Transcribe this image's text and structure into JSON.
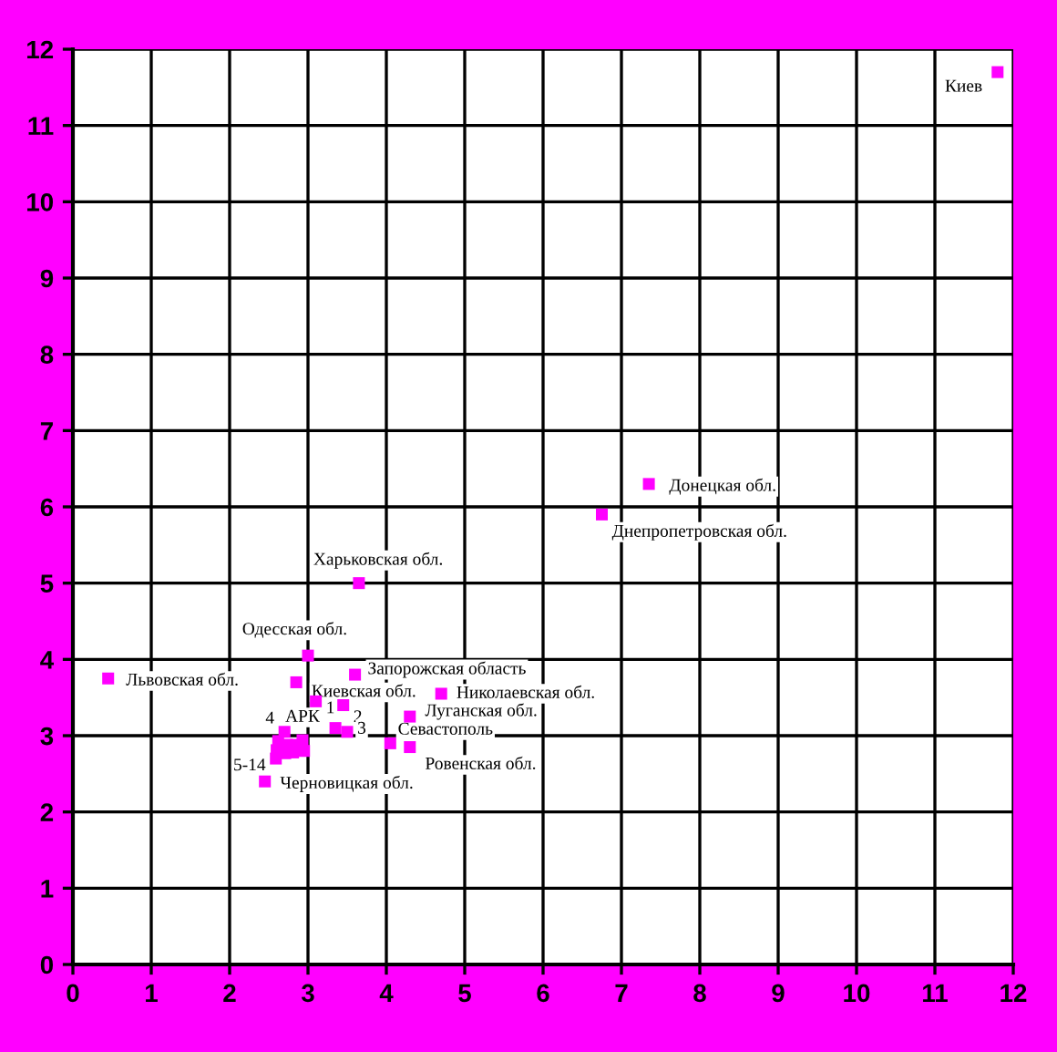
{
  "chart_data": {
    "type": "scatter",
    "marker": "square",
    "grid": true,
    "xlim": [
      0,
      12
    ],
    "ylim": [
      0,
      12
    ],
    "xticks": [
      0,
      1,
      2,
      3,
      4,
      5,
      6,
      7,
      8,
      9,
      10,
      11,
      12
    ],
    "yticks": [
      0,
      1,
      2,
      3,
      4,
      5,
      6,
      7,
      8,
      9,
      10,
      11,
      12
    ],
    "x": [
      11.8,
      7.35,
      6.75,
      3.65,
      3.0,
      0.45,
      2.85,
      3.6,
      4.7,
      3.1,
      3.45,
      4.3,
      3.35,
      3.5,
      2.7,
      2.93,
      4.05,
      4.3,
      2.45,
      2.62,
      2.73,
      2.85,
      2.6,
      2.81,
      2.95,
      2.59,
      2.71
    ],
    "series": [
      {
        "color": "#ff00ff",
        "values": [
          11.7,
          6.3,
          5.9,
          5.0,
          4.05,
          3.75,
          3.7,
          3.8,
          3.55,
          3.45,
          3.4,
          3.25,
          3.1,
          3.05,
          3.05,
          2.94,
          2.9,
          2.85,
          2.4,
          2.93,
          2.88,
          2.88,
          2.81,
          2.78,
          2.8,
          2.7,
          2.77
        ]
      }
    ],
    "annotations": [
      {
        "text": "Киев",
        "x": 11.8,
        "y": 11.7
      },
      {
        "text": "Донецкая обл.",
        "x": 7.35,
        "y": 6.3
      },
      {
        "text": "Днепропетровская обл.",
        "x": 6.75,
        "y": 5.9
      },
      {
        "text": "Харьковская обл.",
        "x": 3.65,
        "y": 5.0
      },
      {
        "text": "Одесская обл.",
        "x": 3.0,
        "y": 4.05
      },
      {
        "text": "Львовская обл.",
        "x": 0.45,
        "y": 3.75
      },
      {
        "text": "Киевская обл.",
        "x": 2.85,
        "y": 3.7
      },
      {
        "text": "Запорожская область",
        "x": 3.6,
        "y": 3.8
      },
      {
        "text": "Николаевская обл.",
        "x": 4.7,
        "y": 3.55
      },
      {
        "text": "1",
        "x": 3.1,
        "y": 3.45
      },
      {
        "text": "2",
        "x": 3.45,
        "y": 3.4
      },
      {
        "text": "Луганская обл.",
        "x": 4.3,
        "y": 3.25
      },
      {
        "text": "3",
        "x": 3.5,
        "y": 3.05
      },
      {
        "text": "4",
        "x": 2.7,
        "y": 3.05
      },
      {
        "text": "АРК",
        "x": 2.93,
        "y": 2.94
      },
      {
        "text": "Севастополь",
        "x": 4.05,
        "y": 2.9
      },
      {
        "text": "Ровенская обл.",
        "x": 4.3,
        "y": 2.85
      },
      {
        "text": "5-14",
        "x": 2.59,
        "y": 2.7
      },
      {
        "text": "Черновицкая обл.",
        "x": 2.45,
        "y": 2.4
      }
    ]
  }
}
